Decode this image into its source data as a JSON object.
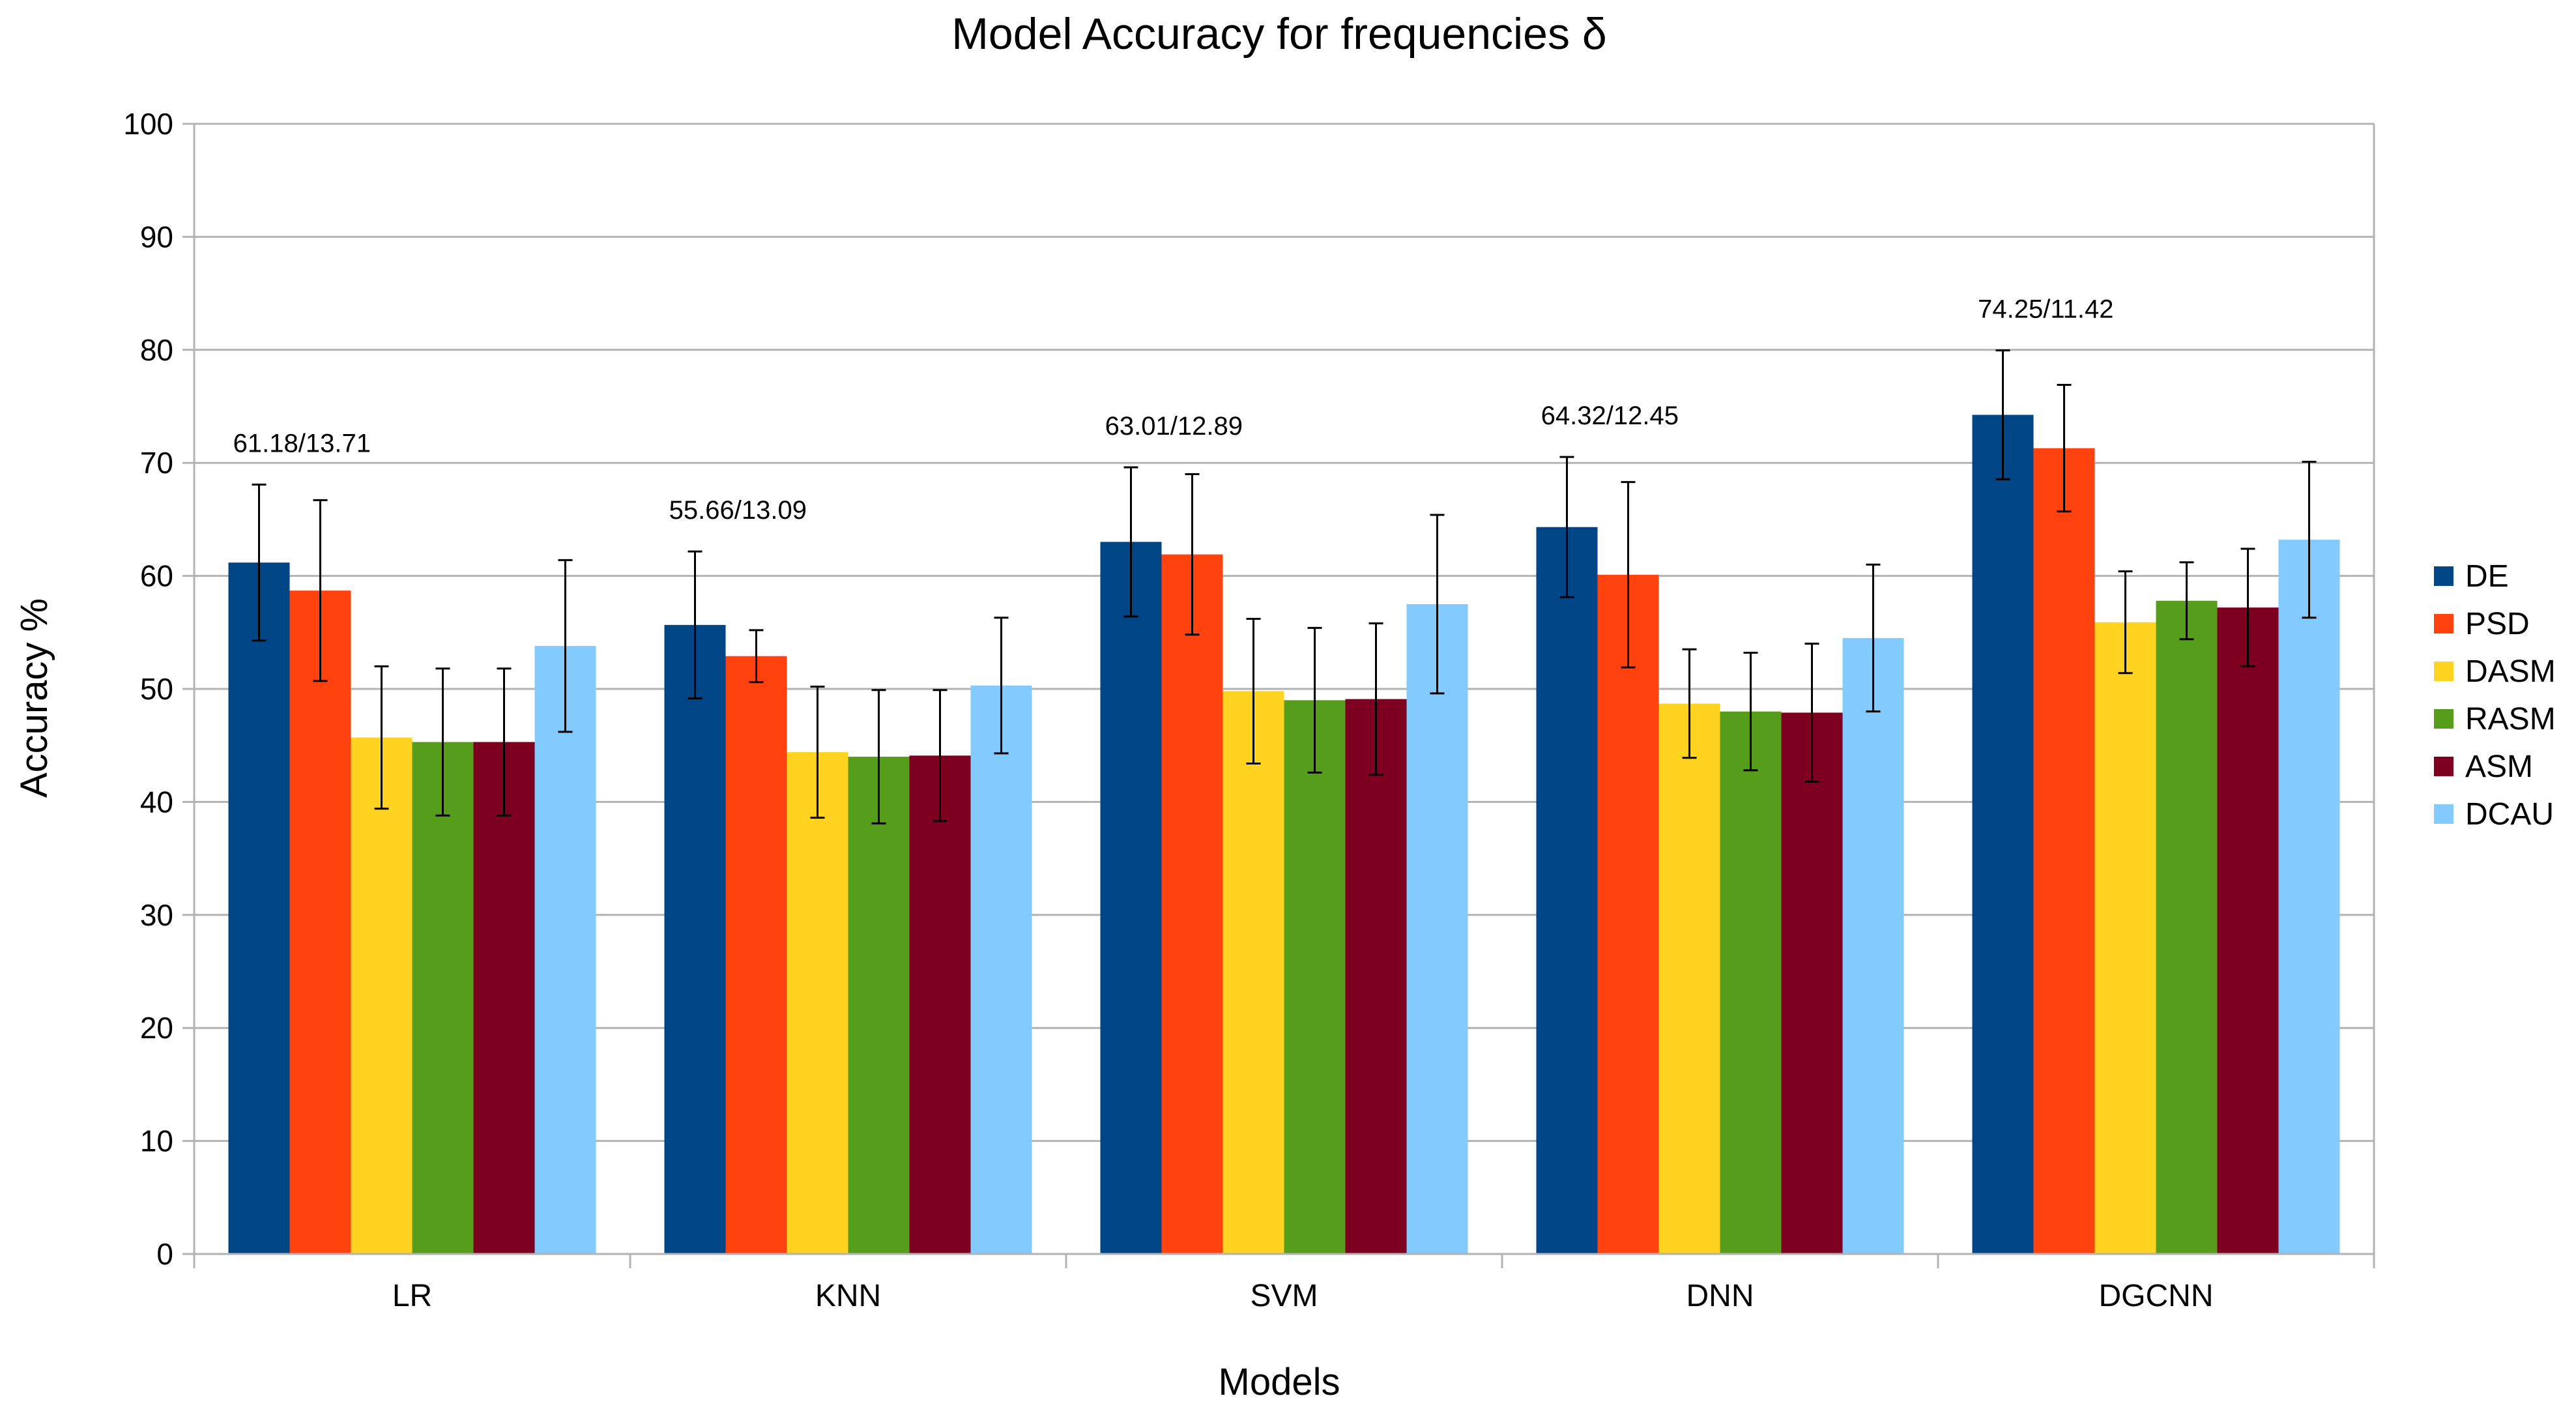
{
  "chart_data": {
    "type": "bar",
    "title": "Model Accuracy for frequencies δ",
    "xlabel": "Models",
    "ylabel": "Accuracy %",
    "ylim": [
      0,
      100
    ],
    "yticks": [
      0,
      10,
      20,
      30,
      40,
      50,
      60,
      70,
      80,
      90,
      100
    ],
    "grid": true,
    "legend_position": "right",
    "error_bars": true,
    "categories": [
      "LR",
      "KNN",
      "SVM",
      "DNN",
      "DGCNN"
    ],
    "series": [
      {
        "name": "DE",
        "color": "#004586",
        "values": [
          61.18,
          55.66,
          63.01,
          64.32,
          74.25
        ],
        "errors": [
          6.9,
          6.5,
          6.6,
          6.2,
          5.7
        ]
      },
      {
        "name": "PSD",
        "color": "#ff420e",
        "values": [
          58.7,
          52.9,
          61.9,
          60.1,
          71.3
        ],
        "errors": [
          8.0,
          2.3,
          7.1,
          8.2,
          5.6
        ]
      },
      {
        "name": "DASM",
        "color": "#ffd320",
        "values": [
          45.7,
          44.4,
          49.8,
          48.7,
          55.9
        ],
        "errors": [
          6.3,
          5.8,
          6.4,
          4.8,
          4.5
        ]
      },
      {
        "name": "RASM",
        "color": "#579d1c",
        "values": [
          45.3,
          44.0,
          49.0,
          48.0,
          57.8
        ],
        "errors": [
          6.5,
          5.9,
          6.4,
          5.2,
          3.4
        ]
      },
      {
        "name": "ASM",
        "color": "#7e0021",
        "values": [
          45.3,
          44.1,
          49.1,
          47.9,
          57.2
        ],
        "errors": [
          6.5,
          5.8,
          6.7,
          6.1,
          5.2
        ]
      },
      {
        "name": "DCAU",
        "color": "#83caff",
        "values": [
          53.8,
          50.3,
          57.5,
          54.5,
          63.2
        ],
        "errors": [
          7.6,
          6.0,
          7.9,
          6.5,
          6.9
        ]
      }
    ],
    "annotations": [
      {
        "category": "LR",
        "text": "61.18/13.71"
      },
      {
        "category": "KNN",
        "text": "55.66/13.09"
      },
      {
        "category": "SVM",
        "text": "63.01/12.89"
      },
      {
        "category": "DNN",
        "text": "64.32/12.45"
      },
      {
        "category": "DGCNN",
        "text": "74.25/11.42"
      }
    ]
  }
}
